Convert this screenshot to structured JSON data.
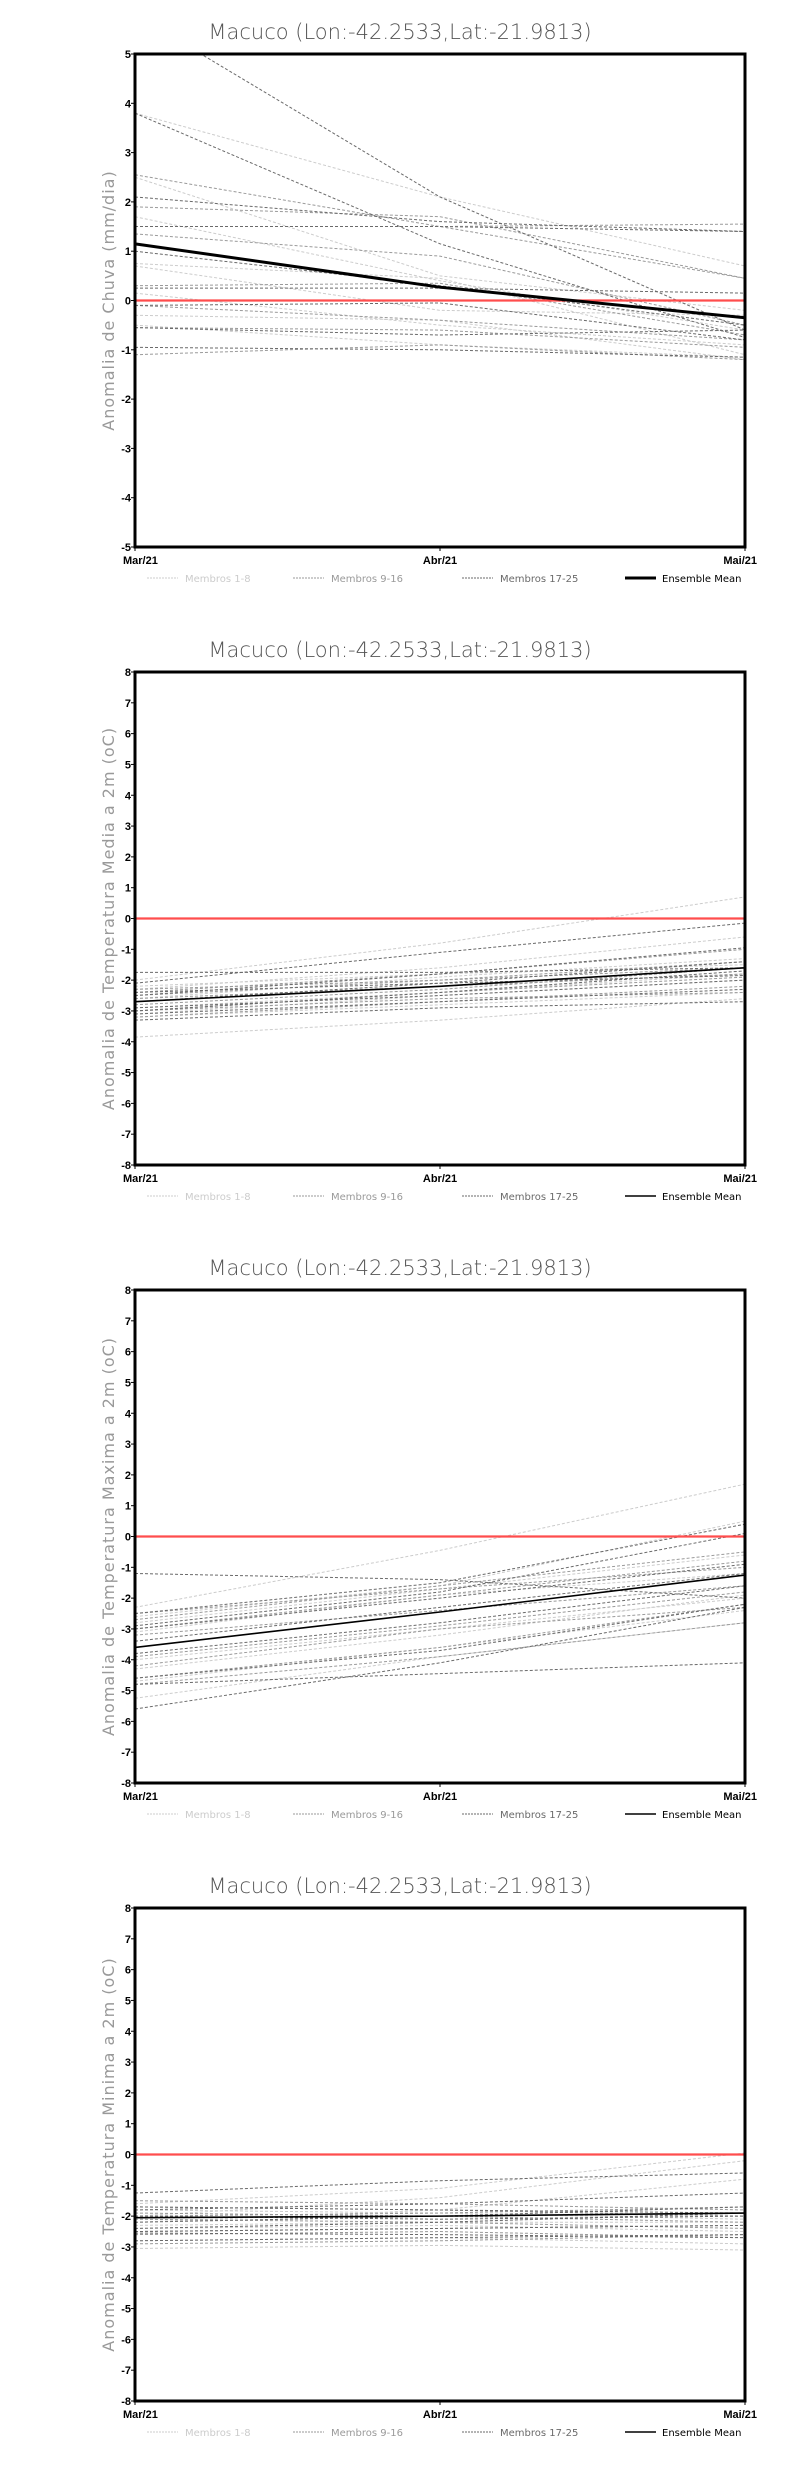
{
  "legend": {
    "labels": [
      "Membros 1-8",
      "Membros 9-16",
      "Membros 17-25",
      "Ensemble Mean"
    ],
    "colors": [
      "#cccccc",
      "#9a9a9a",
      "#6a6a6a",
      "#000000"
    ]
  },
  "zero_line_color": "#ff4d4d",
  "chart_data": [
    {
      "type": "line",
      "title": "Macuco (Lon:-42.2533,Lat:-21.9813)",
      "ylabel": "Anomalia de Chuva (mm/dia)",
      "xlabel": "",
      "x": [
        "Mar/21",
        "Abr/21",
        "Mai/21"
      ],
      "ylim": [
        -5,
        5
      ],
      "yticks": [
        -5,
        -4,
        -3,
        -2,
        -1,
        0,
        1,
        2,
        3,
        4,
        5
      ],
      "mean_width": 3,
      "series": [
        {
          "group": 0,
          "values": [
            [
              3.8,
              2.1,
              0.7
            ],
            [
              2.5,
              0.5,
              -0.2
            ],
            [
              1.7,
              0.4,
              -0.6
            ],
            [
              0.75,
              0.45,
              -1.1
            ],
            [
              0.15,
              -0.5,
              -0.9
            ],
            [
              -0.3,
              -0.4,
              -1.2
            ],
            [
              -0.5,
              -0.9,
              -1.15
            ],
            [
              0.7,
              -0.2,
              -0.3
            ]
          ]
        },
        {
          "group": 1,
          "values": [
            [
              2.55,
              1.5,
              0.45
            ],
            [
              1.9,
              1.7,
              0.45
            ],
            [
              1.5,
              1.5,
              1.55
            ],
            [
              1.35,
              0.9,
              -0.5
            ],
            [
              0.3,
              0.35,
              -0.7
            ],
            [
              -0.1,
              -0.4,
              -0.8
            ],
            [
              -0.55,
              -0.6,
              -0.95
            ],
            [
              -1.1,
              -0.9,
              -1.2
            ]
          ]
        },
        {
          "group": 2,
          "values": [
            [
              5.8,
              2.1,
              -0.6
            ],
            [
              3.8,
              1.15,
              -0.75
            ],
            [
              2.1,
              1.6,
              1.4
            ],
            [
              1.5,
              1.5,
              1.4
            ],
            [
              1.0,
              0.3,
              -0.5
            ],
            [
              0.25,
              0.25,
              0.15
            ],
            [
              -0.1,
              -0.05,
              -0.8
            ],
            [
              -0.55,
              -0.7,
              -0.6
            ],
            [
              -0.95,
              -1.0,
              -1.15
            ]
          ]
        }
      ],
      "mean": [
        1.15,
        0.27,
        -0.35
      ]
    },
    {
      "type": "line",
      "title": "Macuco (Lon:-42.2533,Lat:-21.9813)",
      "ylabel": "Anomalia de Temperatura Media a 2m (oC)",
      "xlabel": "",
      "x": [
        "Mar/21",
        "Abr/21",
        "Mai/21"
      ],
      "ylim": [
        -8,
        8
      ],
      "yticks": [
        -8,
        -7,
        -6,
        -5,
        -4,
        -3,
        -2,
        -1,
        0,
        1,
        2,
        3,
        4,
        5,
        6,
        7,
        8
      ],
      "mean_width": 1.6,
      "series": [
        {
          "group": 0,
          "values": [
            [
              -2.0,
              -0.8,
              0.7
            ],
            [
              -3.85,
              -3.3,
              -2.6
            ],
            [
              -2.3,
              -1.6,
              -0.6
            ],
            [
              -2.6,
              -1.9,
              -1.3
            ],
            [
              -3.1,
              -2.5,
              -2.0
            ],
            [
              -2.9,
              -2.4,
              -1.8
            ],
            [
              -2.2,
              -1.8,
              -1.5
            ],
            [
              -3.2,
              -2.8,
              -2.4
            ]
          ]
        },
        {
          "group": 1,
          "values": [
            [
              -2.4,
              -1.8,
              -1.0
            ],
            [
              -2.8,
              -2.3,
              -1.6
            ],
            [
              -3.0,
              -2.4,
              -1.9
            ],
            [
              -2.5,
              -2.0,
              -1.4
            ],
            [
              -3.2,
              -2.7,
              -2.2
            ],
            [
              -2.6,
              -2.2,
              -1.8
            ],
            [
              -2.3,
              -2.0,
              -1.6
            ],
            [
              -3.0,
              -2.6,
              -2.4
            ]
          ]
        },
        {
          "group": 2,
          "values": [
            [
              -2.1,
              -1.1,
              -0.15
            ],
            [
              -1.75,
              -1.75,
              -1.6
            ],
            [
              -2.5,
              -1.8,
              -0.95
            ],
            [
              -2.7,
              -2.1,
              -1.4
            ],
            [
              -3.3,
              -2.9,
              -2.7
            ],
            [
              -2.9,
              -2.5,
              -2.0
            ],
            [
              -3.1,
              -2.7,
              -2.3
            ],
            [
              -2.4,
              -2.1,
              -1.85
            ],
            [
              -3.0,
              -2.4,
              -1.7
            ]
          ]
        }
      ],
      "mean": [
        -2.7,
        -2.2,
        -1.6
      ]
    },
    {
      "type": "line",
      "title": "Macuco (Lon:-42.2533,Lat:-21.9813)",
      "ylabel": "Anomalia de Temperatura Maxima a 2m (oC)",
      "xlabel": "",
      "x": [
        "Mar/21",
        "Abr/21",
        "Mai/21"
      ],
      "ylim": [
        -8,
        8
      ],
      "yticks": [
        -8,
        -7,
        -6,
        -5,
        -4,
        -3,
        -2,
        -1,
        0,
        1,
        2,
        3,
        4,
        5,
        6,
        7,
        8
      ],
      "mean_width": 1.6,
      "series": [
        {
          "group": 0,
          "values": [
            [
              -2.3,
              -0.45,
              1.7
            ],
            [
              -2.8,
              -1.7,
              -0.6
            ],
            [
              -4.0,
              -3.0,
              -2.0
            ],
            [
              -5.25,
              -3.9,
              -2.8
            ],
            [
              -3.1,
              -1.9,
              -1.2
            ],
            [
              -4.7,
              -3.6,
              -2.4
            ],
            [
              -2.6,
              -1.6,
              0.5
            ],
            [
              -4.3,
              -3.2,
              -1.9
            ]
          ]
        },
        {
          "group": 1,
          "values": [
            [
              -2.5,
              -1.7,
              -1.0
            ],
            [
              -3.0,
              -1.9,
              -0.8
            ],
            [
              -4.2,
              -3.0,
              -2.3
            ],
            [
              -4.6,
              -3.6,
              -2.2
            ],
            [
              -3.2,
              -2.4,
              -1.6
            ],
            [
              -2.7,
              -1.6,
              -0.5
            ],
            [
              -3.9,
              -2.9,
              -1.8
            ],
            [
              -4.8,
              -3.9,
              -2.8
            ]
          ]
        },
        {
          "group": 2,
          "values": [
            [
              -1.2,
              -1.4,
              -2.0
            ],
            [
              -2.5,
              -1.5,
              0.4
            ],
            [
              -2.9,
              -1.8,
              0.1
            ],
            [
              -4.8,
              -4.45,
              -4.1
            ],
            [
              -5.6,
              -4.1,
              -2.3
            ],
            [
              -3.8,
              -2.8,
              -1.6
            ],
            [
              -4.6,
              -3.7,
              -2.2
            ],
            [
              -3.0,
              -2.0,
              -0.9
            ],
            [
              -3.4,
              -2.3,
              -1.2
            ]
          ]
        }
      ],
      "mean": [
        -3.6,
        -2.45,
        -1.25
      ]
    },
    {
      "type": "line",
      "title": "Macuco (Lon:-42.2533,Lat:-21.9813)",
      "ylabel": "Anomalia de Temperatura Minima a 2m (oC)",
      "xlabel": "",
      "x": [
        "Mar/21",
        "Abr/21",
        "Mai/21"
      ],
      "ylim": [
        -8,
        8
      ],
      "yticks": [
        -8,
        -7,
        -6,
        -5,
        -4,
        -3,
        -2,
        -1,
        0,
        1,
        2,
        3,
        4,
        5,
        6,
        7,
        8
      ],
      "mean_width": 1.6,
      "series": [
        {
          "group": 0,
          "values": [
            [
              -1.6,
              -1.1,
              0.05
            ],
            [
              -2.0,
              -1.4,
              -0.2
            ],
            [
              -3.05,
              -2.95,
              -3.1
            ],
            [
              -2.2,
              -1.8,
              -0.8
            ],
            [
              -2.4,
              -2.3,
              -2.5
            ],
            [
              -1.8,
              -1.9,
              -2.1
            ],
            [
              -2.8,
              -2.7,
              -2.9
            ],
            [
              -2.3,
              -2.2,
              -2.2
            ]
          ]
        },
        {
          "group": 1,
          "values": [
            [
              -1.9,
              -2.0,
              -2.2
            ],
            [
              -2.1,
              -2.2,
              -2.4
            ],
            [
              -1.5,
              -1.6,
              -1.8
            ],
            [
              -2.6,
              -2.5,
              -2.7
            ],
            [
              -2.0,
              -1.9,
              -1.7
            ],
            [
              -2.5,
              -2.4,
              -2.3
            ],
            [
              -1.7,
              -1.8,
              -2.0
            ],
            [
              -2.9,
              -2.8,
              -2.6
            ]
          ]
        },
        {
          "group": 2,
          "values": [
            [
              -1.25,
              -0.85,
              -0.6
            ],
            [
              -1.8,
              -1.6,
              -1.25
            ],
            [
              -2.4,
              -2.2,
              -1.9
            ],
            [
              -2.55,
              -2.6,
              -2.7
            ],
            [
              -1.7,
              -1.8,
              -1.9
            ],
            [
              -2.0,
              -2.1,
              -2.0
            ],
            [
              -2.8,
              -2.7,
              -2.6
            ],
            [
              -2.2,
              -2.0,
              -1.7
            ],
            [
              -2.5,
              -2.4,
              -2.3
            ]
          ]
        }
      ],
      "mean": [
        -2.05,
        -2.0,
        -1.9
      ]
    }
  ]
}
